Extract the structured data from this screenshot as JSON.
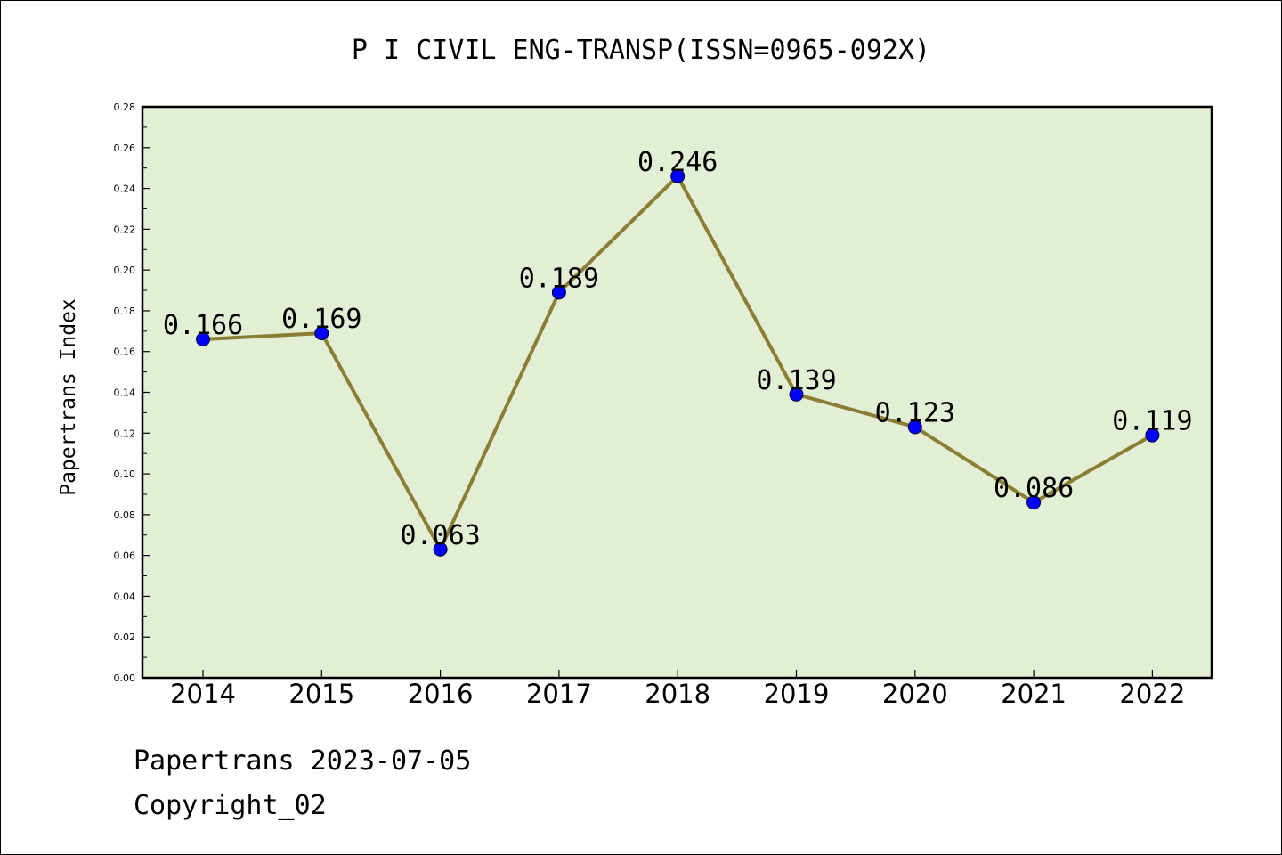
{
  "chart_data": {
    "type": "line",
    "title": "P I CIVIL ENG-TRANSP(ISSN=0965-092X)",
    "ylabel": "Papertrans Index",
    "xlabel": "",
    "categories": [
      "2014",
      "2015",
      "2016",
      "2017",
      "2018",
      "2019",
      "2020",
      "2021",
      "2022"
    ],
    "values": [
      0.166,
      0.169,
      0.063,
      0.189,
      0.246,
      0.139,
      0.123,
      0.086,
      0.119
    ],
    "data_labels": [
      "0.166",
      "0.169",
      "0.063",
      "0.189",
      "0.246",
      "0.139",
      "0.123",
      "0.086",
      "0.119"
    ],
    "ylim": [
      0,
      0.28
    ],
    "yticks": [
      "0.00",
      "0.02",
      "0.04",
      "0.06",
      "0.08",
      "0.10",
      "0.12",
      "0.14",
      "0.16",
      "0.18",
      "0.20",
      "0.22",
      "0.24",
      "0.26",
      "0.28"
    ],
    "grid": false,
    "legend": "none",
    "colors": {
      "plot_background": "#e2efd5",
      "line": "#8b7d33",
      "marker": "#0000ff"
    }
  },
  "footer": {
    "line1": "Papertrans 2023-07-05",
    "line2": "Copyright_02"
  }
}
